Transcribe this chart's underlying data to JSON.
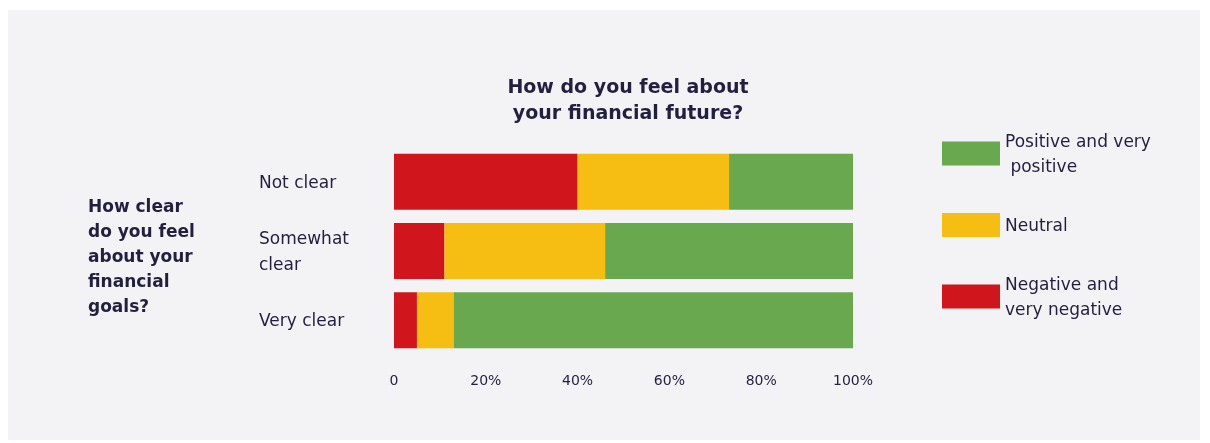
{
  "chart_data": {
    "type": "bar",
    "orientation": "horizontal",
    "stacked": true,
    "title": "How do you feel about\nyour financial future?",
    "ylabel": "How clear\ndo you feel\nabout your\nfinancial\ngoals?",
    "categories": [
      "Not clear",
      "Somewhat clear",
      "Very clear"
    ],
    "series": [
      {
        "name": "Negative and very negative",
        "color": "#d0161c",
        "values": [
          40,
          11,
          5
        ]
      },
      {
        "name": "Neutral",
        "color": "#f6be13",
        "values": [
          33,
          35,
          8
        ]
      },
      {
        "name": "Positive and very positive",
        "color": "#69a84f",
        "values": [
          27,
          54,
          87
        ]
      }
    ],
    "xlim": [
      0,
      100
    ],
    "xticks": [
      0,
      {
        "value": 20,
        "label": "20%"
      },
      {
        "value": 40,
        "label": "40%"
      },
      {
        "value": 60,
        "label": "60%"
      },
      {
        "value": 80,
        "label": "80%"
      },
      {
        "value": 100,
        "label": "100%"
      }
    ],
    "grid": false,
    "legend": "right"
  }
}
